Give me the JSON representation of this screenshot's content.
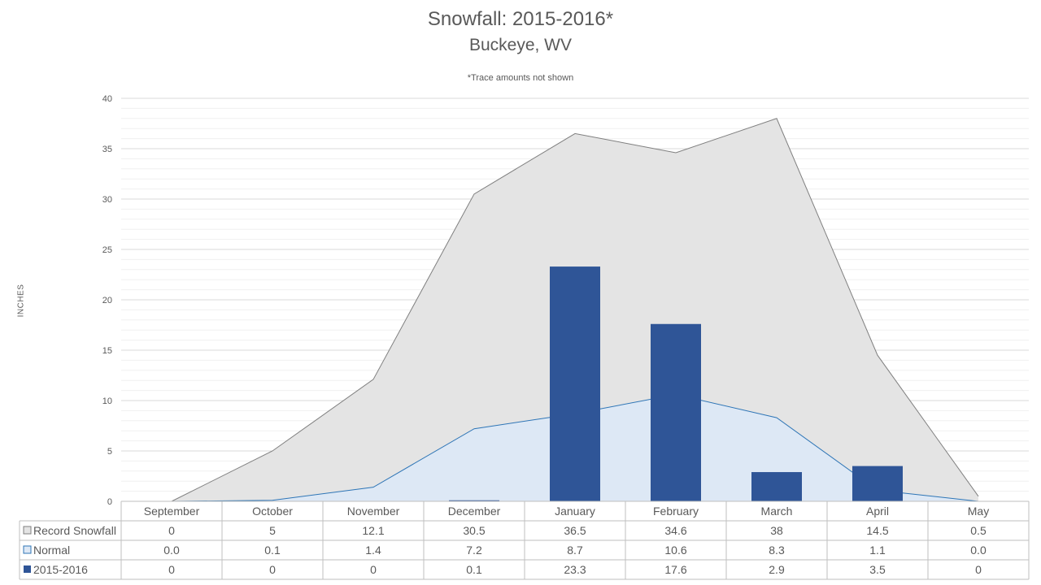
{
  "chart_data": {
    "type": "bar",
    "title": "Snowfall: 2015-2016*",
    "subtitle": "Buckeye, WV",
    "note": "*Trace amounts not shown",
    "ylabel": "INCHES",
    "ylim": [
      0,
      40
    ],
    "yticks": [
      0,
      5,
      10,
      15,
      20,
      25,
      30,
      35,
      40
    ],
    "grid": true,
    "categories": [
      "September",
      "October",
      "November",
      "December",
      "January",
      "February",
      "March",
      "April",
      "May"
    ],
    "series": [
      {
        "name": "Record Snowfall",
        "kind": "area",
        "color": "#e4e4e4",
        "line_color": "#7f7f7f",
        "values": [
          0,
          5,
          12.1,
          30.5,
          36.5,
          34.6,
          38,
          14.5,
          0.5
        ],
        "labels": [
          "0",
          "5",
          "12.1",
          "30.5",
          "36.5",
          "34.6",
          "38",
          "14.5",
          "0.5"
        ]
      },
      {
        "name": "Normal",
        "kind": "area",
        "color": "#dde8f5",
        "line_color": "#2e75b6",
        "values": [
          0.0,
          0.1,
          1.4,
          7.2,
          8.7,
          10.6,
          8.3,
          1.1,
          0.0
        ],
        "labels": [
          "0.0",
          "0.1",
          "1.4",
          "7.2",
          "8.7",
          "10.6",
          "8.3",
          "1.1",
          "0.0"
        ]
      },
      {
        "name": "2015-2016",
        "kind": "bar",
        "color": "#2f5597",
        "values": [
          0,
          0,
          0,
          0.1,
          23.3,
          17.6,
          2.9,
          3.5,
          0
        ],
        "labels": [
          "0",
          "0",
          "0",
          "0.1",
          "23.3",
          "17.6",
          "2.9",
          "3.5",
          "0"
        ]
      }
    ]
  }
}
